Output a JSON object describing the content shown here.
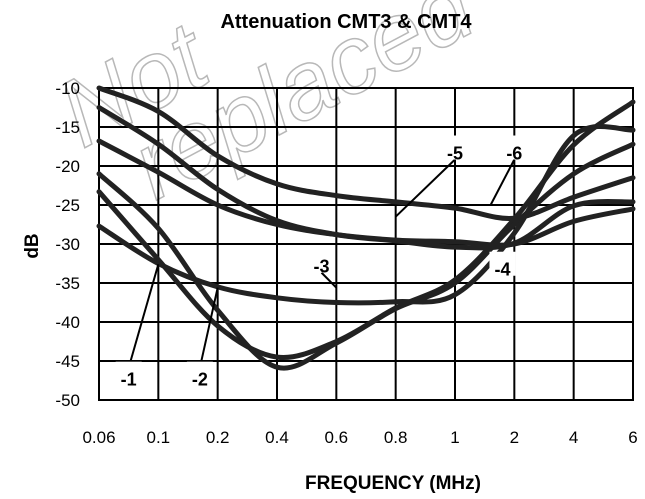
{
  "watermark": {
    "line1": "Not",
    "line2": "replaced"
  },
  "chart_data": {
    "type": "line",
    "title": "Attenuation CMT3 & CMT4",
    "xlabel": "FREQUENCY (MHz)",
    "ylabel": "dB",
    "x_scale": "categorical",
    "x_ticks": [
      "0.06",
      "0.1",
      "0.2",
      "0.4",
      "0.6",
      "0.8",
      "1",
      "2",
      "4",
      "6"
    ],
    "y_ticks": [
      "-10",
      "-15",
      "-20",
      "-25",
      "-30",
      "-35",
      "-40",
      "-45",
      "-50"
    ],
    "ylim": [
      -50,
      -10
    ],
    "grid": true,
    "series": [
      {
        "name": "-1",
        "x": [
          "0.06",
          "0.1",
          "0.2",
          "0.4",
          "0.6",
          "0.8",
          "1",
          "2",
          "4",
          "6"
        ],
        "y": [
          -23.3,
          -32.0,
          -40.5,
          -44.5,
          -42.5,
          -38.2,
          -34.6,
          -26.8,
          -17.3,
          -11.8
        ]
      },
      {
        "name": "-2",
        "x": [
          "0.06",
          "0.1",
          "0.2",
          "0.4",
          "0.6",
          "0.8",
          "1",
          "2",
          "4",
          "6"
        ],
        "y": [
          -21.0,
          -28.0,
          -38.5,
          -45.8,
          -42.7,
          -38.3,
          -35.0,
          -27.5,
          -21.0,
          -17.2
        ]
      },
      {
        "name": "-3",
        "x": [
          "0.06",
          "0.1",
          "0.2",
          "0.4",
          "0.6",
          "0.8",
          "1",
          "2",
          "4",
          "6"
        ],
        "y": [
          -27.7,
          -32.5,
          -35.5,
          -36.9,
          -37.5,
          -37.4,
          -36.5,
          -28.6,
          -16.1,
          -15.4
        ]
      },
      {
        "name": "-4",
        "x": [
          "0.06",
          "0.1",
          "0.2",
          "0.4",
          "0.6",
          "0.8",
          "1",
          "2",
          "4",
          "6"
        ],
        "y": [
          -12.5,
          -17.2,
          -23.0,
          -27.0,
          -28.8,
          -29.6,
          -30.4,
          -29.9,
          -25.1,
          -24.6
        ]
      },
      {
        "name": "-5",
        "x": [
          "0.06",
          "0.1",
          "0.2",
          "0.4",
          "0.6",
          "0.8",
          "1",
          "2",
          "4",
          "6"
        ],
        "y": [
          -16.8,
          -20.8,
          -25.0,
          -27.5,
          -28.8,
          -29.5,
          -29.7,
          -30.0,
          -27.1,
          -25.5
        ]
      },
      {
        "name": "-6",
        "x": [
          "0.06",
          "0.1",
          "0.2",
          "0.4",
          "0.6",
          "0.8",
          "1",
          "2",
          "4",
          "6"
        ],
        "y": [
          -10.0,
          -13.0,
          -18.7,
          -22.3,
          -23.8,
          -24.6,
          -25.4,
          -26.7,
          -24.0,
          -21.5
        ]
      }
    ],
    "annotations": [
      {
        "text": "-1",
        "target_series": 0,
        "target_x": "0.1",
        "target_y": -32.6,
        "label_x": "0.08",
        "label_y": -47.4
      },
      {
        "text": "-2",
        "target_series": 1,
        "target_x": "0.2",
        "target_y": -35.6,
        "label_x": "0.17",
        "label_y": -47.4
      },
      {
        "text": "-3",
        "target_series": 2,
        "target_x": "0.6",
        "target_y": -35.6,
        "label_x": "0.55",
        "label_y": -32.9
      },
      {
        "text": "-4",
        "target_series": 3,
        "target_x": "2",
        "target_y": -31.3,
        "label_x": "1.8",
        "label_y": -33.3
      },
      {
        "text": "-5",
        "target_series": 4,
        "target_x": "0.8",
        "target_y": -26.5,
        "label_x": "1",
        "label_y": -18.4
      },
      {
        "text": "-6",
        "target_series": 5,
        "target_x": "1.6",
        "target_y": -25.0,
        "label_x": "2",
        "label_y": -18.4
      }
    ]
  }
}
